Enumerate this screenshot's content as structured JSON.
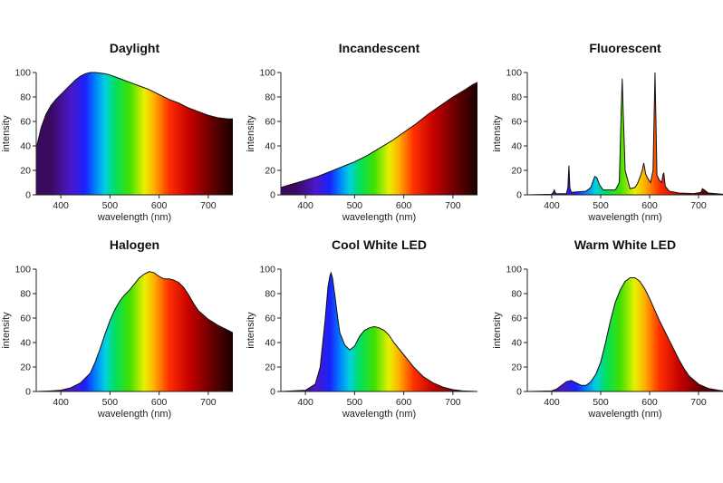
{
  "colors": {
    "background": "#ffffff",
    "text": "#111111",
    "spectrum_stops": [
      {
        "nm": 380,
        "color": "#3a0a5e"
      },
      {
        "nm": 420,
        "color": "#4b18c8"
      },
      {
        "nm": 450,
        "color": "#1a22ff"
      },
      {
        "nm": 470,
        "color": "#0080ff"
      },
      {
        "nm": 490,
        "color": "#00d0e0"
      },
      {
        "nm": 510,
        "color": "#00e060"
      },
      {
        "nm": 540,
        "color": "#40e000"
      },
      {
        "nm": 570,
        "color": "#e8f000"
      },
      {
        "nm": 590,
        "color": "#ffb000"
      },
      {
        "nm": 620,
        "color": "#ff3000"
      },
      {
        "nm": 660,
        "color": "#c80000"
      },
      {
        "nm": 710,
        "color": "#600000"
      },
      {
        "nm": 750,
        "color": "#1a0000"
      }
    ]
  },
  "chart_data": [
    {
      "type": "area",
      "title": "Daylight",
      "xlabel": "wavelength (nm)",
      "ylabel": "intensity",
      "xlim": [
        350,
        750
      ],
      "ylim": [
        0,
        100
      ],
      "xticks": [
        400,
        500,
        600,
        700
      ],
      "yticks": [
        0,
        20,
        40,
        60,
        80,
        100
      ],
      "x": [
        350,
        360,
        370,
        380,
        390,
        400,
        410,
        420,
        430,
        440,
        450,
        460,
        470,
        480,
        490,
        500,
        520,
        540,
        560,
        580,
        600,
        620,
        640,
        660,
        680,
        700,
        720,
        740,
        750
      ],
      "values": [
        38,
        55,
        66,
        73,
        78,
        82,
        86,
        90,
        94,
        97,
        99,
        100,
        100,
        99.5,
        99,
        98,
        95,
        92,
        89,
        86,
        82,
        78,
        75,
        71,
        68,
        65,
        63,
        62,
        62
      ]
    },
    {
      "type": "area",
      "title": "Incandescent",
      "xlabel": "wavelength (nm)",
      "ylabel": "intensity",
      "xlim": [
        350,
        750
      ],
      "ylim": [
        0,
        100
      ],
      "xticks": [
        400,
        500,
        600,
        700
      ],
      "yticks": [
        0,
        20,
        40,
        60,
        80,
        100
      ],
      "x": [
        350,
        375,
        400,
        425,
        450,
        475,
        500,
        525,
        550,
        575,
        600,
        625,
        650,
        675,
        700,
        725,
        740,
        750
      ],
      "values": [
        6,
        9,
        12,
        15,
        19,
        23,
        27,
        32,
        38,
        44,
        51,
        58,
        66,
        73,
        80,
        86,
        90,
        92
      ]
    },
    {
      "type": "area",
      "title": "Fluorescent",
      "xlabel": "wavelength (nm)",
      "ylabel": "intensity",
      "xlim": [
        350,
        750
      ],
      "ylim": [
        0,
        100
      ],
      "xticks": [
        400,
        500,
        600,
        700
      ],
      "yticks": [
        0,
        20,
        40,
        60,
        80,
        100
      ],
      "x": [
        350,
        400,
        403,
        405,
        407,
        410,
        430,
        433,
        435,
        437,
        440,
        470,
        480,
        485,
        488,
        492,
        498,
        505,
        530,
        538,
        542,
        544,
        546,
        550,
        560,
        570,
        575,
        580,
        585,
        588,
        592,
        597,
        602,
        607,
        609,
        611,
        613,
        615,
        620,
        625,
        627,
        629,
        632,
        640,
        660,
        690,
        705,
        708,
        712,
        720,
        750
      ],
      "values": [
        0,
        0.5,
        2,
        4,
        2,
        0.8,
        1,
        6,
        24,
        6,
        2,
        3,
        6,
        12,
        15,
        14,
        8,
        4,
        4,
        10,
        70,
        95,
        68,
        20,
        5,
        6,
        9,
        14,
        20,
        26,
        17,
        13,
        10,
        20,
        60,
        100,
        60,
        16,
        12,
        10,
        16,
        18,
        7,
        3,
        1.5,
        1,
        2,
        5,
        4,
        1.5,
        0.5
      ]
    },
    {
      "type": "area",
      "title": "Halogen",
      "xlabel": "wavelength (nm)",
      "ylabel": "intensity",
      "xlim": [
        350,
        750
      ],
      "ylim": [
        0,
        100
      ],
      "xticks": [
        400,
        500,
        600,
        700
      ],
      "yticks": [
        0,
        20,
        40,
        60,
        80,
        100
      ],
      "x": [
        350,
        380,
        400,
        420,
        440,
        460,
        470,
        480,
        490,
        500,
        510,
        520,
        530,
        540,
        550,
        560,
        570,
        580,
        590,
        600,
        610,
        620,
        630,
        640,
        650,
        660,
        670,
        680,
        700,
        720,
        740,
        750
      ],
      "values": [
        0,
        0.5,
        1,
        3,
        7,
        15,
        24,
        35,
        47,
        58,
        67,
        74,
        79,
        83,
        88,
        93,
        96,
        98,
        97,
        94,
        92,
        92,
        91,
        89,
        85,
        79,
        72,
        66,
        59,
        54,
        50,
        48
      ]
    },
    {
      "type": "area",
      "title": "Cool White LED",
      "xlabel": "wavelength (nm)",
      "ylabel": "intensity",
      "xlim": [
        350,
        750
      ],
      "ylim": [
        0,
        100
      ],
      "xticks": [
        400,
        500,
        600,
        700
      ],
      "yticks": [
        0,
        20,
        40,
        60,
        80,
        100
      ],
      "x": [
        350,
        400,
        420,
        430,
        440,
        446,
        450,
        452,
        455,
        460,
        465,
        470,
        480,
        490,
        500,
        510,
        520,
        530,
        540,
        550,
        560,
        570,
        580,
        600,
        620,
        640,
        660,
        680,
        700,
        720,
        750
      ],
      "values": [
        0,
        1,
        6,
        20,
        58,
        86,
        95,
        97,
        93,
        78,
        62,
        48,
        38,
        34,
        37,
        45,
        50,
        52,
        53,
        52,
        50,
        46,
        40,
        30,
        20,
        12,
        7,
        3.5,
        1.5,
        0.5,
        0
      ]
    },
    {
      "type": "area",
      "title": "Warm White LED",
      "xlabel": "wavelength (nm)",
      "ylabel": "intensity",
      "xlim": [
        350,
        750
      ],
      "ylim": [
        0,
        100
      ],
      "xticks": [
        400,
        500,
        600,
        700
      ],
      "yticks": [
        0,
        20,
        40,
        60,
        80,
        100
      ],
      "x": [
        350,
        400,
        410,
        420,
        430,
        440,
        450,
        460,
        470,
        480,
        490,
        500,
        510,
        520,
        530,
        540,
        550,
        560,
        570,
        580,
        590,
        600,
        610,
        620,
        630,
        640,
        650,
        660,
        670,
        680,
        700,
        720,
        740,
        750
      ],
      "values": [
        0,
        0.5,
        2,
        5,
        8,
        9,
        7,
        5,
        5,
        8,
        14,
        24,
        40,
        58,
        73,
        83,
        90,
        93,
        93,
        90,
        84,
        76,
        67,
        58,
        50,
        42,
        34,
        26,
        19,
        13,
        6,
        2.5,
        1,
        0.5
      ]
    }
  ]
}
